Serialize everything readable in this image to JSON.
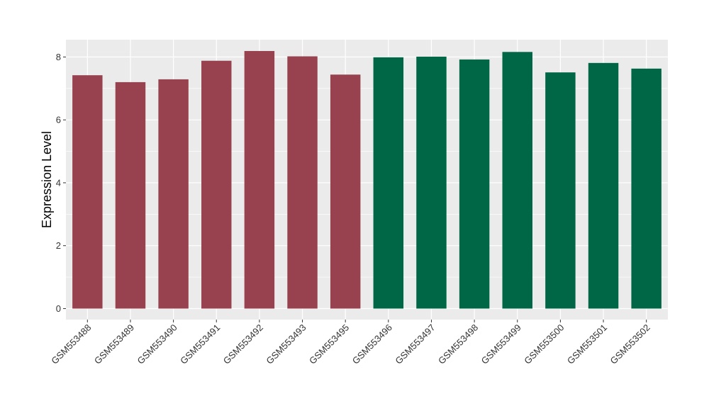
{
  "chart_data": {
    "type": "bar",
    "title": "",
    "xlabel": "",
    "ylabel": "Expression Level",
    "ylim": [
      -0.35,
      8.55
    ],
    "yticks": [
      0,
      2,
      4,
      6,
      8
    ],
    "grid": true,
    "legend": "none",
    "categories": [
      "GSM553488",
      "GSM553489",
      "GSM553490",
      "GSM553491",
      "GSM553492",
      "GSM553493",
      "GSM553495",
      "GSM553496",
      "GSM553497",
      "GSM553498",
      "GSM553499",
      "GSM553500",
      "GSM553501",
      "GSM553502"
    ],
    "values": [
      7.42,
      7.2,
      7.29,
      7.88,
      8.19,
      8.02,
      7.44,
      7.99,
      8.01,
      7.92,
      8.16,
      7.51,
      7.81,
      7.63
    ],
    "groups": [
      0,
      0,
      0,
      0,
      0,
      0,
      0,
      1,
      1,
      1,
      1,
      1,
      1,
      1
    ],
    "group_colors": [
      "#98424F",
      "#006746"
    ],
    "panel_background": "#EBEBEB",
    "grid_color": "#FFFFFF"
  }
}
